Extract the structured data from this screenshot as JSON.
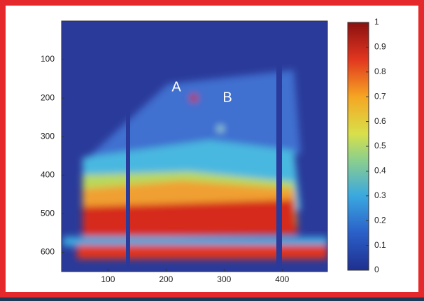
{
  "chart_data": {
    "type": "heatmap",
    "annotations": [
      "A",
      "B"
    ],
    "xlim": [
      20,
      478
    ],
    "xticks": [
      100,
      200,
      300,
      400
    ],
    "ylim": [
      0,
      650
    ],
    "yticks": [
      100,
      200,
      300,
      400,
      500,
      600
    ],
    "clim": [
      0,
      1
    ],
    "cticks": [
      0,
      0.1,
      0.2,
      0.3,
      0.4,
      0.5,
      0.6,
      0.7,
      0.8,
      0.9,
      1
    ],
    "colormap": "jet"
  }
}
